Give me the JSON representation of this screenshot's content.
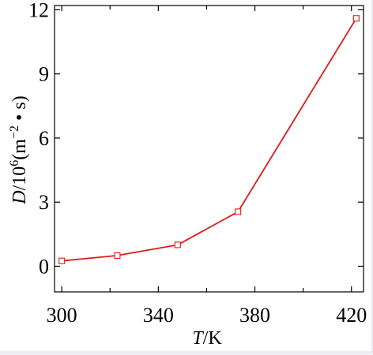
{
  "chart_data": {
    "type": "line",
    "title": "",
    "xlabel": {
      "italic": "T",
      "rest": "/K"
    },
    "ylabel": {
      "italic": "D",
      "rest": "/10",
      "exp": "6",
      "unit": "(m",
      "unit_exp": "−2",
      "unit_rest": " • s)"
    },
    "xlim": [
      297,
      425
    ],
    "ylim": [
      -1.2,
      12.2
    ],
    "xticks": [
      {
        "value": 300,
        "label": "300"
      },
      {
        "value": 340,
        "label": "340"
      },
      {
        "value": 380,
        "label": "380"
      },
      {
        "value": 420,
        "label": "420"
      }
    ],
    "x_minor_ticks": [
      320,
      360,
      400
    ],
    "yticks": [
      {
        "value": 0,
        "label": "0"
      },
      {
        "value": 3,
        "label": "3"
      },
      {
        "value": 6,
        "label": "6"
      },
      {
        "value": 9,
        "label": "9"
      },
      {
        "value": 12,
        "label": "12"
      }
    ],
    "grid": false,
    "marker": "open-square",
    "series": [
      {
        "color": "#e01a1a",
        "x": [
          300,
          323,
          348,
          373,
          422
        ],
        "y": [
          0.25,
          0.5,
          1.0,
          2.55,
          11.6
        ]
      }
    ]
  }
}
